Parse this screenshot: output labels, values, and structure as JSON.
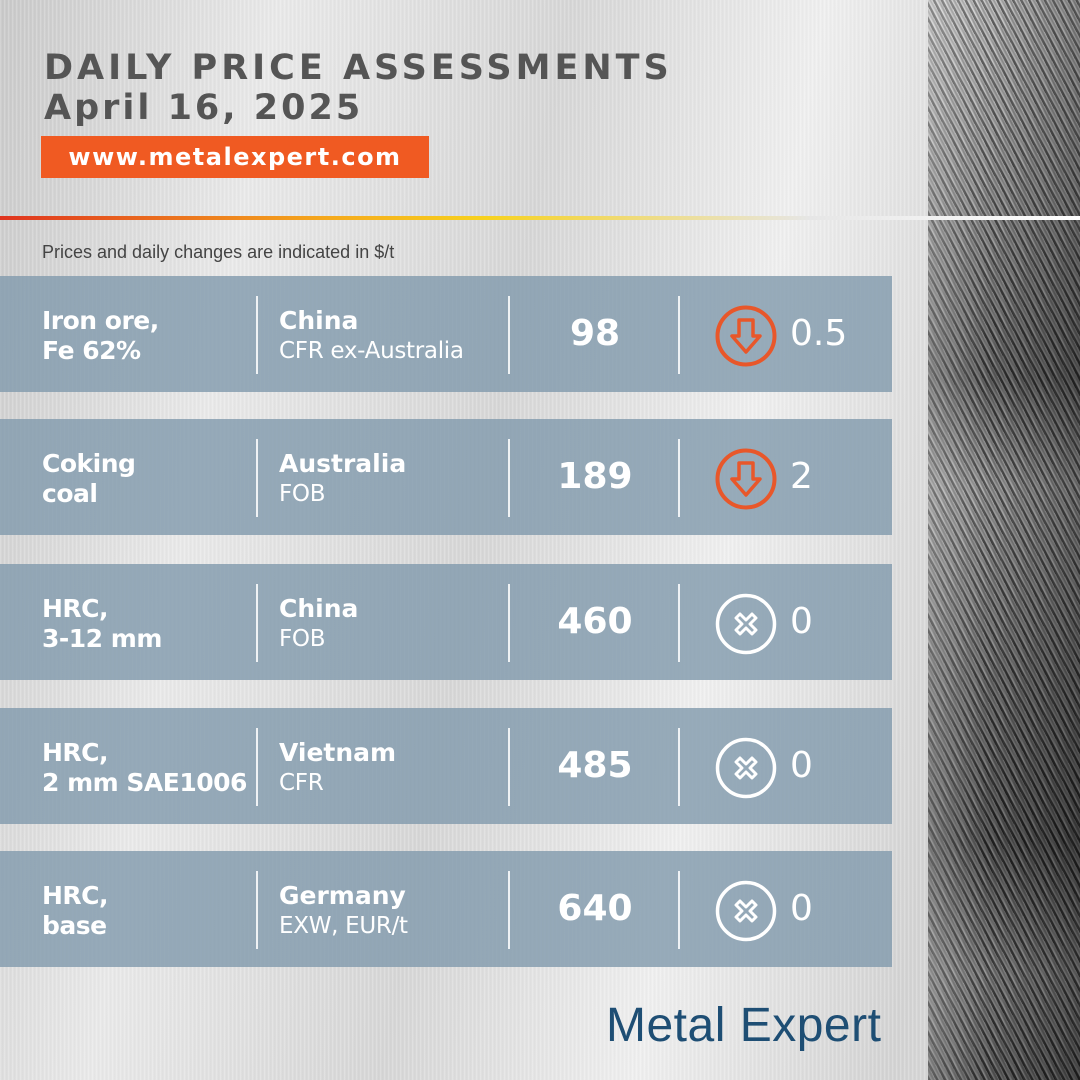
{
  "header": {
    "title": "DAILY PRICE ASSESSMENTS",
    "date": "April 16, 2025",
    "url": "www.metalexpert.com"
  },
  "note": "Prices and daily changes are indicated in $/t",
  "colors": {
    "accent": "#f05a22",
    "row_bg": "#839bad",
    "text_dark": "#555555",
    "brand": "#1e4e74",
    "icon_down": "#e8572a",
    "icon_neutral": "#ffffff"
  },
  "rows": [
    {
      "product_line1": "Iron ore,",
      "product_line2": "Fe 62%",
      "country": "China",
      "basis": "CFR ex-Australia",
      "price": "98",
      "change": "0.5",
      "icon": "down-arrow-icon"
    },
    {
      "product_line1": "Coking",
      "product_line2": "coal",
      "country": "Australia",
      "basis": "FOB",
      "price": "189",
      "change": "2",
      "icon": "down-arrow-icon"
    },
    {
      "product_line1": "HRC,",
      "product_line2": "3-12 mm",
      "country": "China",
      "basis": "FOB",
      "price": "460",
      "change": "0",
      "icon": "no-change-icon"
    },
    {
      "product_line1": "HRC,",
      "product_line2": "2 mm SAE1006",
      "country": "Vietnam",
      "basis": "CFR",
      "price": "485",
      "change": "0",
      "icon": "no-change-icon"
    },
    {
      "product_line1": "HRC,",
      "product_line2": "base",
      "country": "Germany",
      "basis": "EXW, EUR/t",
      "price": "640",
      "change": "0",
      "icon": "no-change-icon"
    }
  ],
  "footer": {
    "brand": "Metal Expert"
  }
}
